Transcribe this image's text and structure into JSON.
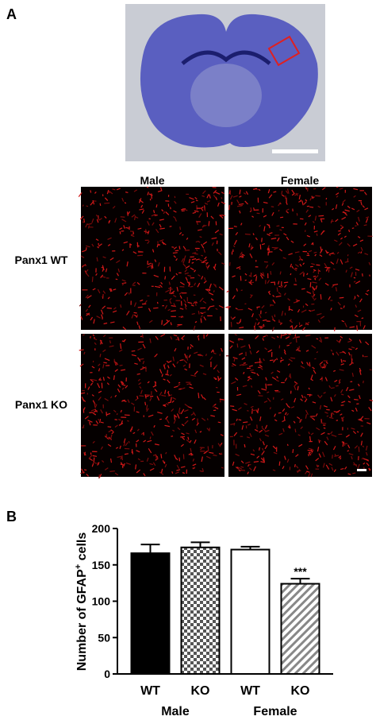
{
  "panels": {
    "a": "A",
    "b": "B"
  },
  "micrographs": {
    "columns": [
      "Male",
      "Female"
    ],
    "rows": [
      "Panx1 WT",
      "Panx1 KO"
    ]
  },
  "chart_data": {
    "type": "bar",
    "ylabel": "Number of GFAP",
    "ylabel_sup": "+",
    "ylabel_end": "cells",
    "categories": [
      "WT",
      "KO",
      "WT",
      "KO"
    ],
    "groups": [
      "Male",
      "Female"
    ],
    "values": [
      166,
      174,
      171,
      124
    ],
    "errors": [
      12,
      7,
      4,
      7
    ],
    "annotations": [
      null,
      null,
      null,
      "***"
    ],
    "ylim": [
      0,
      200
    ],
    "yticks": [
      0,
      50,
      100,
      150,
      200
    ]
  }
}
